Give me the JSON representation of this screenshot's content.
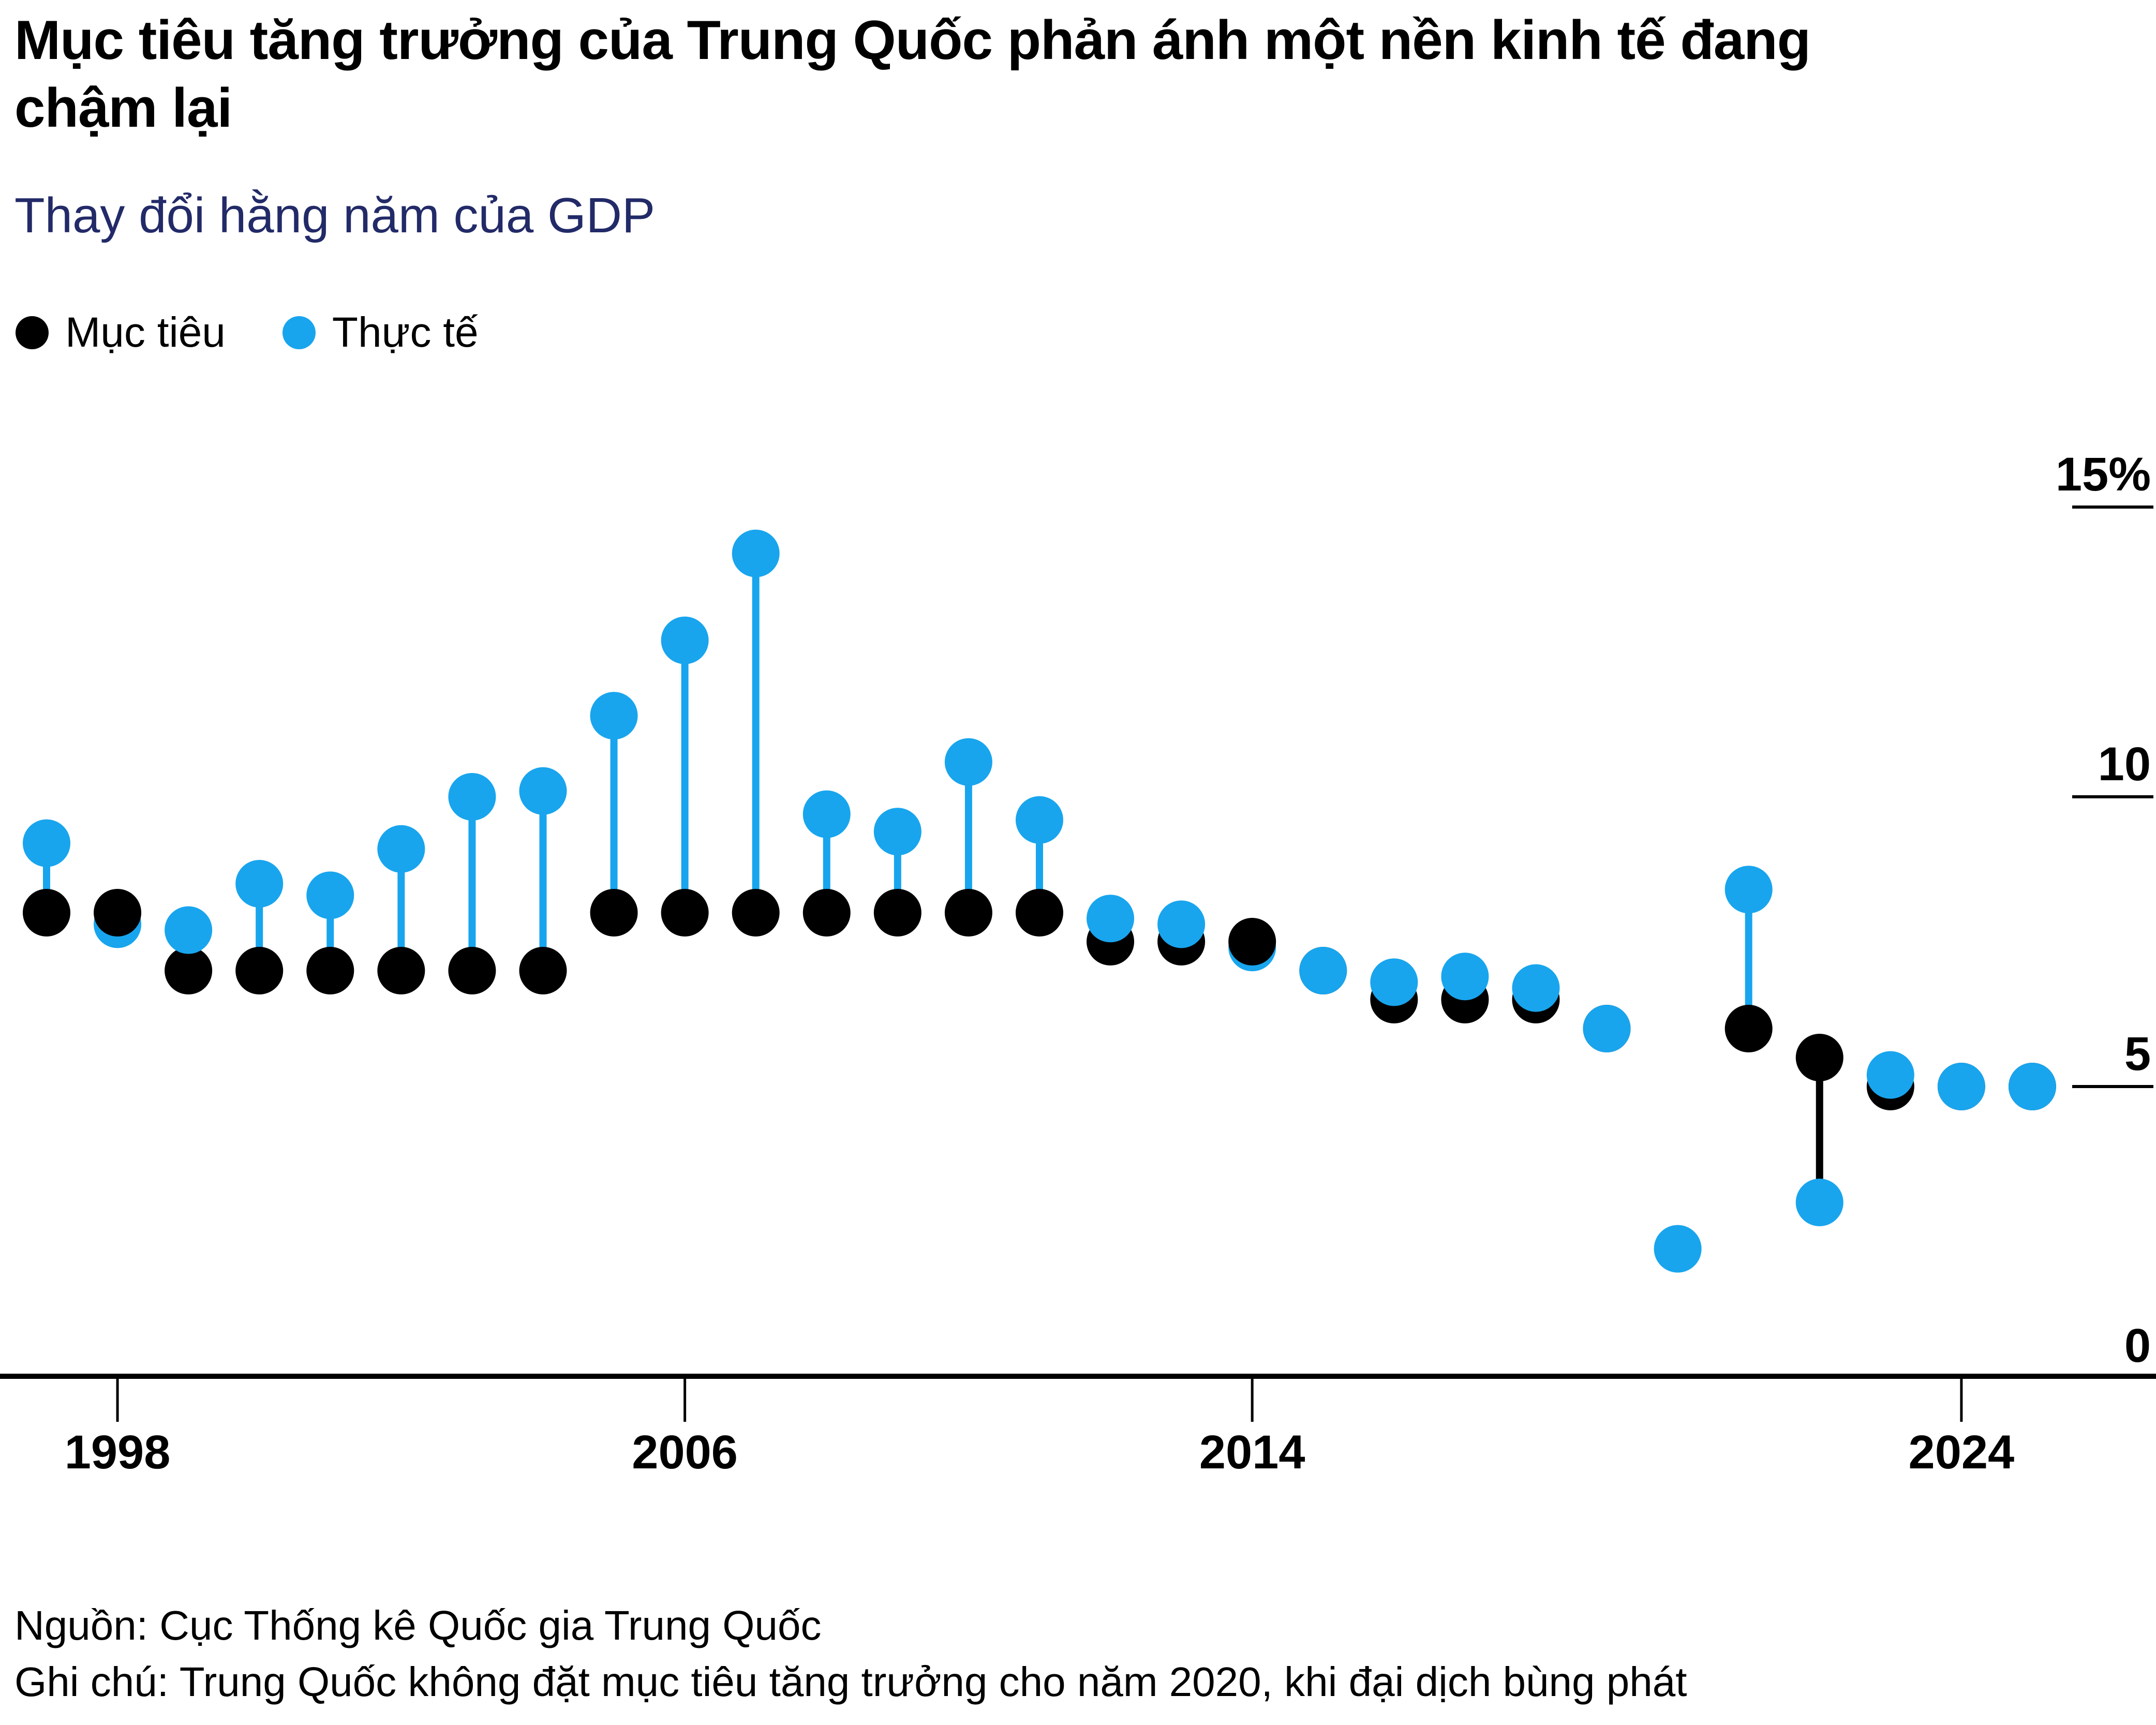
{
  "title": {
    "text": "Mục tiêu tăng trưởng của Trung Quốc phản ánh một nền kinh tế đang chậm lại"
  },
  "subtitle": "Thay đổi hằng năm của GDP",
  "legend": [
    {
      "label": "Mục tiêu",
      "color": "#000000"
    },
    {
      "label": "Thực tế",
      "color": "#18a5ee"
    }
  ],
  "footer": {
    "source": "Nguồn: Cục Thống kê Quốc gia Trung Quốc",
    "note": "Ghi chú: Trung Quốc không đặt mục tiêu tăng trưởng cho năm 2020, khi đại dịch bùng phát"
  },
  "colors": {
    "target": "#000000",
    "actual": "#18a5ee",
    "subtitle_text": "#222a68",
    "axis": "#000000",
    "background": "#ffffff"
  },
  "chart_data": {
    "type": "scatter",
    "subtype": "stem-lollipop-pairs",
    "title": "Thay đổi hằng năm của GDP",
    "unit": "%",
    "x": [
      1997,
      1998,
      1999,
      2000,
      2001,
      2002,
      2003,
      2004,
      2005,
      2006,
      2007,
      2008,
      2009,
      2010,
      2011,
      2012,
      2013,
      2014,
      2015,
      2016,
      2017,
      2018,
      2019,
      2020,
      2021,
      2022,
      2023,
      2024,
      2025
    ],
    "series": [
      {
        "name": "Mục tiêu",
        "color": "#000000",
        "values": [
          8,
          8,
          7,
          7,
          7,
          7,
          7,
          7,
          8,
          8,
          8,
          8,
          8,
          8,
          8,
          7.5,
          7.5,
          7.5,
          7,
          6.5,
          6.5,
          6.5,
          6,
          null,
          6,
          5.5,
          5,
          5,
          5
        ]
      },
      {
        "name": "Thực tế",
        "color": "#18a5ee",
        "values": [
          9.2,
          7.8,
          7.7,
          8.5,
          8.3,
          9.1,
          10.0,
          10.1,
          11.4,
          12.7,
          14.2,
          9.7,
          9.4,
          10.6,
          9.6,
          7.9,
          7.8,
          7.4,
          7.0,
          6.8,
          6.9,
          6.7,
          6.0,
          2.2,
          8.4,
          3.0,
          5.2,
          5.0,
          5.0
        ]
      }
    ],
    "x_tick_labels": [
      "1998",
      "2006",
      "2014",
      "2024"
    ],
    "x_tick_years": [
      1998,
      2006,
      2014,
      2024
    ],
    "y_ticks": [
      {
        "label": "15%",
        "value": 15
      },
      {
        "label": "10",
        "value": 10
      },
      {
        "label": "5",
        "value": 5
      },
      {
        "label": "0",
        "value": 0
      }
    ],
    "ylim": [
      0,
      15.5
    ],
    "xlim": [
      1996.3,
      2026.7
    ],
    "grid": "right-edge tick stubs, bottom baseline at 0",
    "legend_position": "top-left",
    "note": "Không có mục tiêu cho năm 2020"
  }
}
